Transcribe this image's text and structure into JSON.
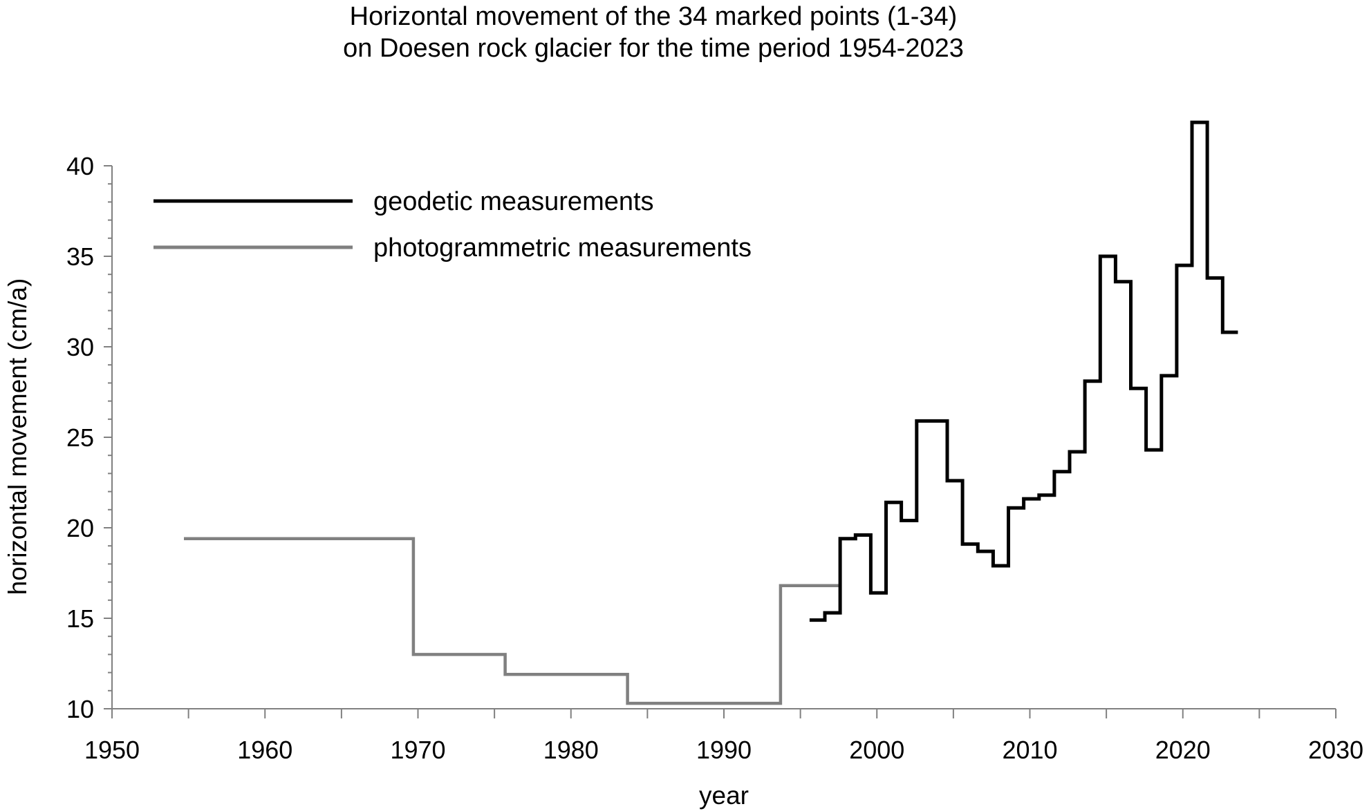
{
  "chart_data": {
    "type": "line",
    "title": "Horizontal movement of the 34 marked points (1-34)",
    "subtitle": "on Doesen rock glacier for the time period 1954-2023",
    "xlabel": "year",
    "ylabel": "horizontal movement (cm/a)",
    "xlim": [
      1950,
      2030
    ],
    "ylim": [
      10,
      42
    ],
    "x_ticks": [
      "1950",
      "1960",
      "1970",
      "1980",
      "1990",
      "2000",
      "2010",
      "2020",
      "2030"
    ],
    "y_ticks": [
      "10",
      "15",
      "20",
      "25",
      "30",
      "35",
      "40"
    ],
    "grid": false,
    "legend_position": "top-left",
    "step": "post",
    "series": [
      {
        "name": "geodetic measurements",
        "color": "#000000",
        "points": [
          [
            1995.6,
            14.9
          ],
          [
            1996.6,
            15.3
          ],
          [
            1997.6,
            19.4
          ],
          [
            1998.6,
            19.6
          ],
          [
            1999.6,
            16.4
          ],
          [
            2000.6,
            21.4
          ],
          [
            2001.6,
            20.4
          ],
          [
            2002.6,
            25.9
          ],
          [
            2004.6,
            22.6
          ],
          [
            2005.6,
            19.1
          ],
          [
            2006.6,
            18.7
          ],
          [
            2007.6,
            17.9
          ],
          [
            2008.6,
            21.1
          ],
          [
            2009.6,
            21.6
          ],
          [
            2010.6,
            21.8
          ],
          [
            2011.6,
            23.1
          ],
          [
            2012.6,
            24.2
          ],
          [
            2013.6,
            28.1
          ],
          [
            2014.6,
            35.0
          ],
          [
            2015.6,
            33.6
          ],
          [
            2016.6,
            27.7
          ],
          [
            2017.6,
            24.3
          ],
          [
            2018.6,
            28.4
          ],
          [
            2019.6,
            34.5
          ],
          [
            2020.6,
            42.4
          ],
          [
            2021.6,
            33.8
          ],
          [
            2022.6,
            30.8
          ],
          [
            2023.6,
            30.8
          ]
        ]
      },
      {
        "name": "photogrammetric measurements",
        "color": "#808080",
        "points": [
          [
            1954.7,
            19.4
          ],
          [
            1969.7,
            13.0
          ],
          [
            1975.7,
            11.9
          ],
          [
            1983.7,
            10.3
          ],
          [
            1993.7,
            16.8
          ],
          [
            1997.7,
            16.8
          ]
        ]
      }
    ]
  }
}
